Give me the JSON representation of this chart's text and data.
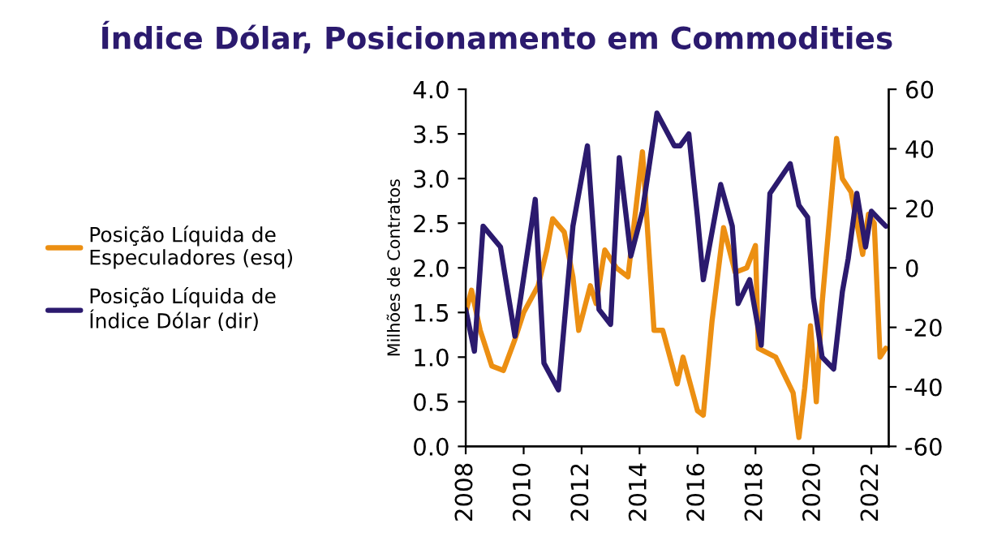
{
  "chart_data": {
    "type": "line",
    "title": "Índice Dólar, Posicionamento em Commodities",
    "ylabel": "Milhões de Contratos",
    "xlim": [
      2008,
      2022.6
    ],
    "xticks": [
      2008,
      2010,
      2012,
      2014,
      2016,
      2018,
      2020,
      2022
    ],
    "ylim": [
      0,
      4
    ],
    "yticks": [
      {
        "value": 0,
        "label": "0.0"
      },
      {
        "value": 0.5,
        "label": "0.5"
      },
      {
        "value": 1,
        "label": "1.0"
      },
      {
        "value": 1.5,
        "label": "1.5"
      },
      {
        "value": 2,
        "label": "2.0"
      },
      {
        "value": 2.5,
        "label": "2.5"
      },
      {
        "value": 3,
        "label": "3.0"
      },
      {
        "value": 3.5,
        "label": "3.5"
      },
      {
        "value": 4,
        "label": "4.0"
      }
    ],
    "y2lim": [
      -60,
      60
    ],
    "y2ticks": [
      -60,
      -40,
      -20,
      0,
      20,
      40,
      60
    ],
    "legend": "left",
    "grid": false,
    "series": [
      {
        "name": "Posição Líquida de Especuladores (esq)",
        "color": "#ec8f12",
        "x": [
          2008,
          2008.2,
          2008.5,
          2008.9,
          2009.3,
          2009.7,
          2010,
          2010.5,
          2010.8,
          2011,
          2011.4,
          2011.7,
          2011.9,
          2012.3,
          2012.5,
          2012.8,
          2013.2,
          2013.6,
          2014.1,
          2014.5,
          2014.8,
          2015.3,
          2015.5,
          2016,
          2016.2,
          2016.5,
          2016.9,
          2017.3,
          2017.7,
          2018,
          2018.1,
          2018.7,
          2019.3,
          2019.5,
          2019.7,
          2019.9,
          2020.1,
          2020.3,
          2020.8,
          2021,
          2021.3,
          2021.7,
          2021.9,
          2022.1,
          2022.3,
          2022.5
        ],
        "values": [
          1.5,
          1.75,
          1.3,
          0.9,
          0.85,
          1.2,
          1.5,
          1.8,
          2.2,
          2.55,
          2.4,
          1.9,
          1.3,
          1.8,
          1.6,
          2.2,
          2.0,
          1.9,
          3.3,
          1.3,
          1.3,
          0.7,
          1.0,
          0.4,
          0.35,
          1.4,
          2.45,
          1.95,
          2.0,
          2.25,
          1.1,
          1.0,
          0.6,
          0.1,
          0.65,
          1.35,
          0.5,
          1.6,
          3.45,
          3.0,
          2.85,
          2.15,
          2.6,
          2.5,
          1.0,
          1.1
        ]
      },
      {
        "name": "Posição Líquida de Índice Dólar (dir)",
        "color": "#2b1a6e",
        "axis": "y2",
        "x": [
          2008,
          2008.3,
          2008.6,
          2009.2,
          2009.7,
          2010.4,
          2010.7,
          2011.2,
          2011.7,
          2012.2,
          2012.6,
          2013.0,
          2013.3,
          2013.7,
          2014.1,
          2014.6,
          2015.2,
          2015.4,
          2015.7,
          2016.0,
          2016.2,
          2016.5,
          2016.8,
          2017.2,
          2017.4,
          2017.8,
          2018.2,
          2018.5,
          2019.2,
          2019.5,
          2019.8,
          2020.0,
          2020.3,
          2020.7,
          2021.0,
          2021.2,
          2021.5,
          2021.8,
          2022.0,
          2022.2,
          2022.5
        ],
        "values": [
          -14,
          -28,
          14,
          7,
          -23,
          23,
          -32,
          -41,
          14,
          41,
          -14,
          -19,
          37,
          4,
          19,
          52,
          41,
          41,
          45,
          17,
          -4,
          12,
          28,
          14,
          -12,
          -4,
          -26,
          25,
          35,
          21,
          17,
          -10,
          -30,
          -34,
          -8,
          3,
          25,
          7,
          19,
          17,
          14
        ]
      }
    ]
  }
}
